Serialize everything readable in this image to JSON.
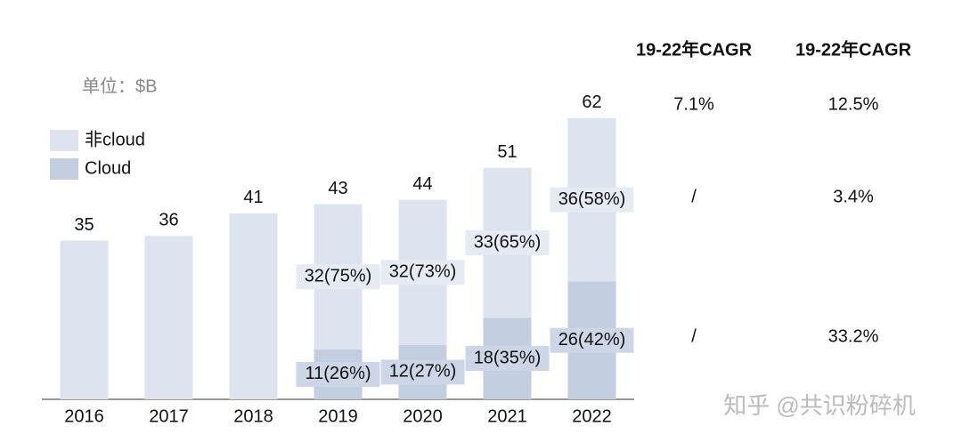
{
  "chart_data": {
    "type": "stacked_bar",
    "unit_label": "单位：$B",
    "categories": [
      "2016",
      "2017",
      "2018",
      "2019",
      "2020",
      "2021",
      "2022"
    ],
    "series": [
      {
        "name": "Cloud",
        "color": "#c4cee1",
        "values": [
          null,
          null,
          null,
          11,
          12,
          18,
          26
        ],
        "value_labels": [
          null,
          null,
          null,
          "11(26%)",
          "12(27%)",
          "18(35%)",
          "26(42%)"
        ]
      },
      {
        "name": "非cloud",
        "color": "#dde4ef",
        "values": [
          35,
          36,
          41,
          32,
          32,
          33,
          36
        ],
        "value_labels": [
          null,
          null,
          null,
          "32(75%)",
          "32(73%)",
          "33(65%)",
          "36(58%)"
        ]
      }
    ],
    "total_labels": [
      35,
      36,
      41,
      43,
      44,
      51,
      62
    ],
    "ylim": [
      0,
      70
    ],
    "cagr_table": {
      "headers": [
        "19-22年CAGR",
        "19-22年CAGR"
      ],
      "rows": [
        [
          "7.1%",
          "12.5%"
        ],
        [
          "/",
          "3.4%"
        ],
        [
          "/",
          "33.2%"
        ]
      ]
    },
    "watermark": "知乎 @共识粉碎机"
  }
}
